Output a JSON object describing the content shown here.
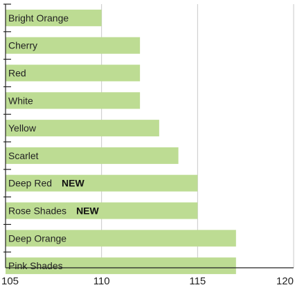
{
  "chart_data": {
    "type": "bar",
    "orientation": "horizontal",
    "categories": [
      "Bright Orange",
      "Cherry",
      "Red",
      "White",
      "Yellow",
      "Scarlet",
      "Deep Red",
      "Rose Shades",
      "Deep Orange",
      "Pink Shades"
    ],
    "values": [
      110,
      112,
      112,
      112,
      113,
      114,
      115,
      115,
      117,
      117
    ],
    "badges": [
      "",
      "",
      "",
      "",
      "",
      "",
      "NEW",
      "NEW",
      "",
      ""
    ],
    "xlim": [
      105,
      120
    ],
    "xticks": [
      "105",
      "110",
      "115",
      "120"
    ],
    "grid": true,
    "bar_color": "#bddc93",
    "grid_color": "#c8c8c8",
    "axis_color": "#222222",
    "label_color": "#222222",
    "badge_color": "#111111"
  }
}
